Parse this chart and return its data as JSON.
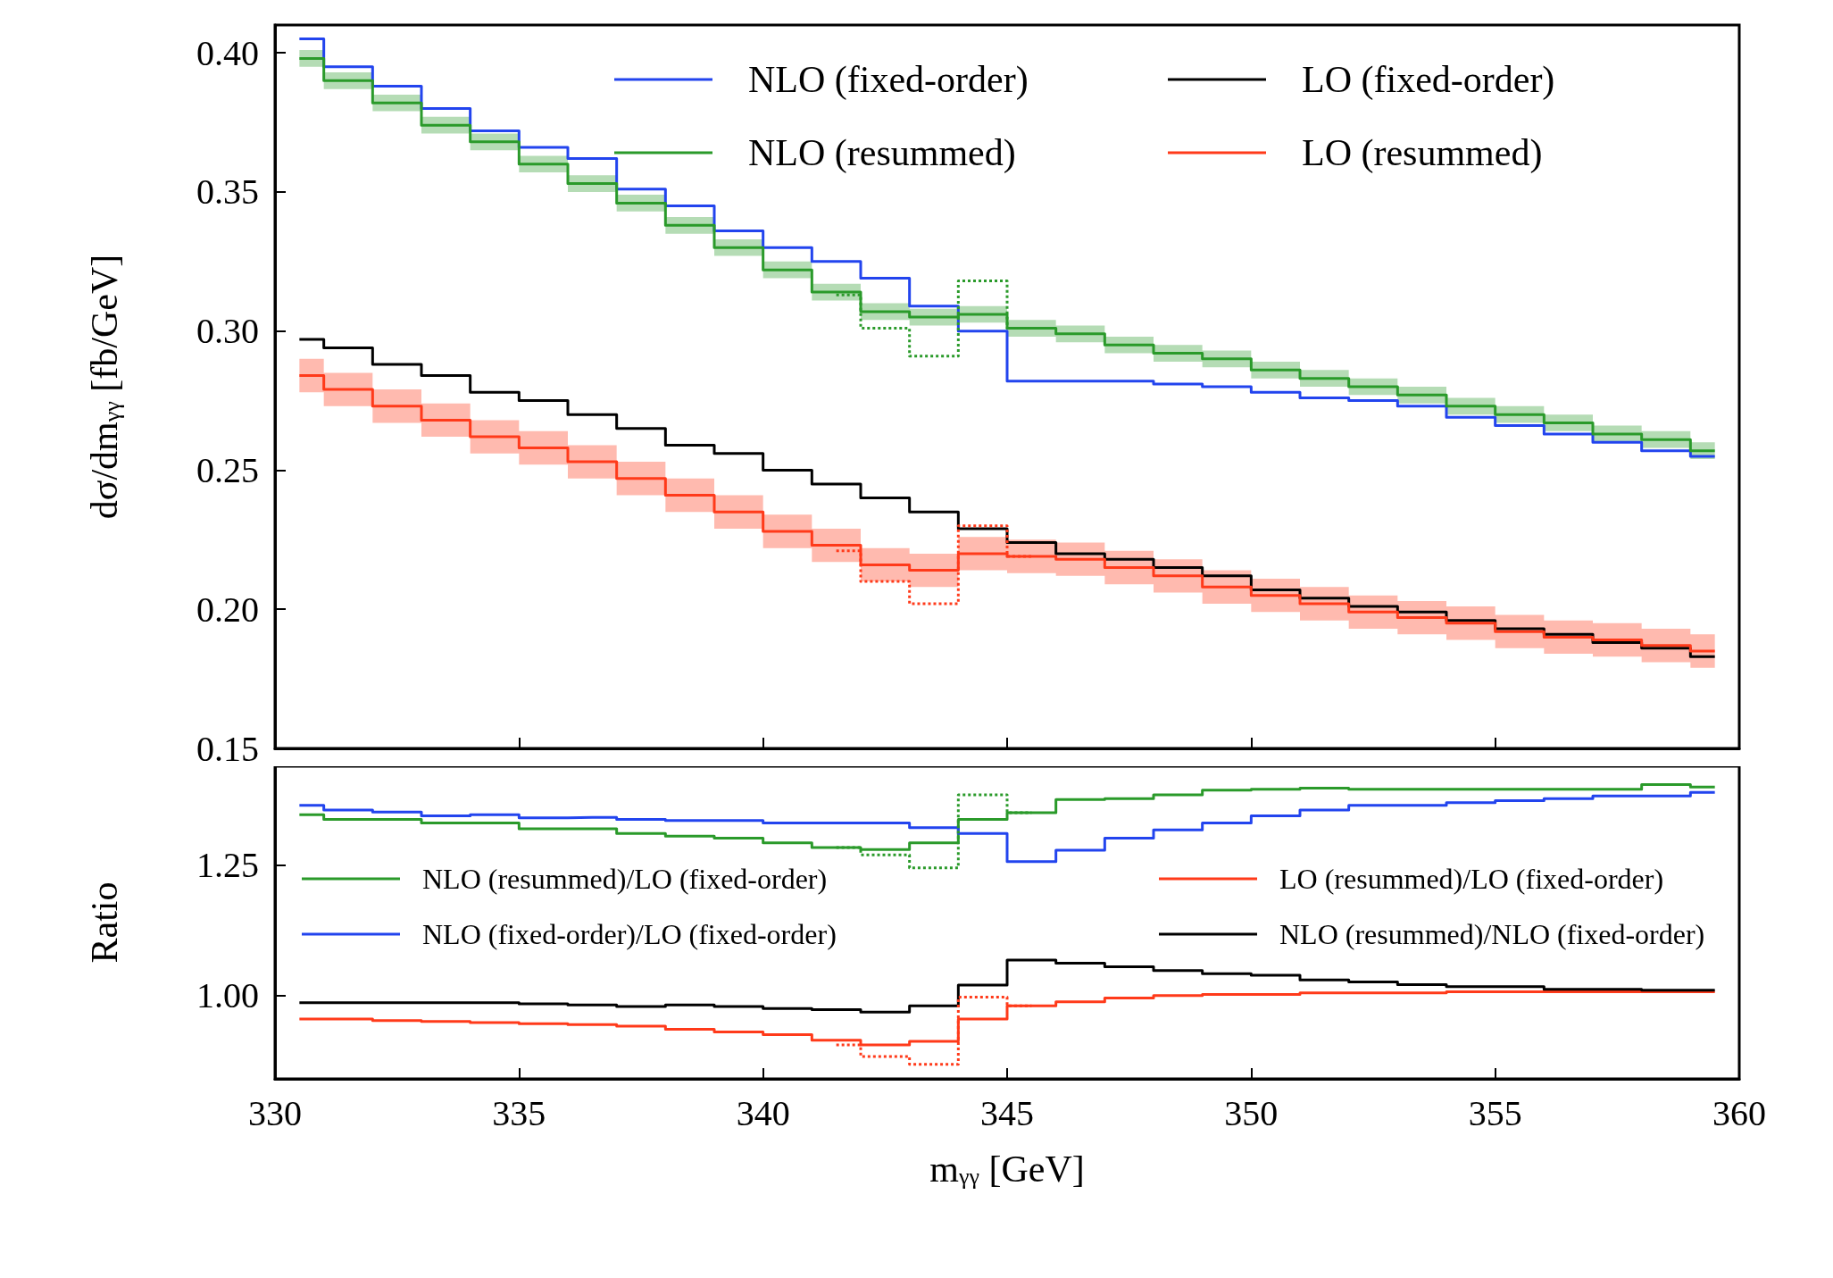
{
  "chart_data": [
    {
      "type": "step",
      "ylabel": "dσ/dm$_{γγ}$ [fb/GeV]",
      "x": [
        330.5,
        331.5,
        332.5,
        333.5,
        334.5,
        335.5,
        336.5,
        337.5,
        338.5,
        339.5,
        340.5,
        341.5,
        342.5,
        343.5,
        344.5,
        345.5,
        346.5,
        347.5,
        348.5,
        349.5,
        350.5,
        351.5,
        352.5,
        353.5,
        354.5,
        355.5,
        356.5,
        357.5,
        358.5,
        359.5
      ],
      "xlim": [
        330,
        360
      ],
      "xticks": [
        330,
        335,
        340,
        345,
        350,
        355,
        360
      ],
      "ylim": [
        0.15,
        0.41
      ],
      "yticks": [
        {
          "value": 0.15,
          "label": "0.15"
        },
        {
          "value": 0.2,
          "label": "0.20"
        },
        {
          "value": 0.25,
          "label": "0.25"
        },
        {
          "value": 0.3,
          "label": "0.30"
        },
        {
          "value": 0.35,
          "label": "0.35"
        },
        {
          "value": 0.4,
          "label": "0.40"
        }
      ],
      "tick_labels": "y",
      "grid": false,
      "legend": "top right",
      "series": [
        {
          "name": "NLO (fixed-order)",
          "color": "#2244ee",
          "values": [
            0.405,
            0.395,
            0.388,
            0.38,
            0.372,
            0.366,
            0.362,
            0.351,
            0.345,
            0.336,
            0.33,
            0.325,
            0.319,
            0.309,
            0.3,
            0.282,
            0.282,
            0.282,
            0.281,
            0.28,
            0.278,
            0.276,
            0.275,
            0.273,
            0.269,
            0.266,
            0.263,
            0.26,
            0.257,
            0.255
          ]
        },
        {
          "name": "NLO (resummed)",
          "color": "#2a9a2a",
          "values": [
            0.398,
            0.39,
            0.382,
            0.374,
            0.368,
            0.36,
            0.353,
            0.346,
            0.338,
            0.33,
            0.322,
            0.314,
            0.307,
            0.305,
            0.306,
            0.301,
            0.299,
            0.295,
            0.292,
            0.29,
            0.286,
            0.283,
            0.28,
            0.277,
            0.273,
            0.27,
            0.267,
            0.263,
            0.261,
            0.257
          ],
          "lower": [
            0.395,
            0.387,
            0.379,
            0.371,
            0.365,
            0.357,
            0.35,
            0.343,
            0.335,
            0.327,
            0.319,
            0.311,
            0.304,
            0.302,
            0.303,
            0.298,
            0.296,
            0.292,
            0.289,
            0.287,
            0.283,
            0.28,
            0.277,
            0.274,
            0.27,
            0.267,
            0.264,
            0.26,
            0.258,
            0.254
          ],
          "upper": [
            0.401,
            0.393,
            0.385,
            0.377,
            0.371,
            0.363,
            0.356,
            0.349,
            0.341,
            0.333,
            0.325,
            0.317,
            0.31,
            0.308,
            0.309,
            0.304,
            0.302,
            0.298,
            0.295,
            0.293,
            0.289,
            0.286,
            0.283,
            0.28,
            0.276,
            0.273,
            0.27,
            0.266,
            0.264,
            0.26
          ]
        },
        {
          "name": "LO (fixed-order)",
          "color": "#000000",
          "values": [
            0.297,
            0.294,
            0.288,
            0.284,
            0.278,
            0.275,
            0.27,
            0.265,
            0.259,
            0.256,
            0.25,
            0.245,
            0.24,
            0.235,
            0.229,
            0.224,
            0.22,
            0.218,
            0.215,
            0.212,
            0.207,
            0.204,
            0.201,
            0.199,
            0.196,
            0.193,
            0.191,
            0.188,
            0.186,
            0.183
          ]
        },
        {
          "name": "LO (resummed)",
          "color": "#ff3a1a",
          "values": [
            0.284,
            0.279,
            0.273,
            0.268,
            0.262,
            0.258,
            0.253,
            0.247,
            0.241,
            0.235,
            0.228,
            0.223,
            0.216,
            0.214,
            0.22,
            0.219,
            0.218,
            0.215,
            0.212,
            0.208,
            0.205,
            0.202,
            0.199,
            0.197,
            0.195,
            0.192,
            0.19,
            0.189,
            0.187,
            0.185
          ],
          "lower": [
            0.278,
            0.273,
            0.267,
            0.262,
            0.256,
            0.252,
            0.247,
            0.241,
            0.235,
            0.229,
            0.222,
            0.217,
            0.21,
            0.208,
            0.214,
            0.213,
            0.212,
            0.209,
            0.206,
            0.202,
            0.199,
            0.196,
            0.193,
            0.191,
            0.189,
            0.186,
            0.184,
            0.183,
            0.181,
            0.179
          ],
          "upper": [
            0.29,
            0.285,
            0.279,
            0.274,
            0.268,
            0.264,
            0.259,
            0.253,
            0.247,
            0.241,
            0.234,
            0.229,
            0.222,
            0.22,
            0.226,
            0.225,
            0.224,
            0.221,
            0.218,
            0.214,
            0.211,
            0.208,
            0.205,
            0.203,
            0.201,
            0.198,
            0.196,
            0.195,
            0.193,
            0.191
          ]
        },
        {
          "color": "#2a9a2a",
          "line_style": "dotted",
          "x": [
            341.5,
            342.5,
            343.5,
            344.5,
            345.5
          ],
          "values": [
            0.313,
            0.301,
            0.291,
            0.318,
            0.301
          ]
        },
        {
          "color": "#ff3a1a",
          "line_style": "dotted",
          "x": [
            341.5,
            342.5,
            343.5,
            344.5,
            345.5
          ],
          "values": [
            0.221,
            0.21,
            0.202,
            0.23,
            0.219
          ]
        }
      ]
    },
    {
      "type": "step",
      "xlabel": "m$_{γγ}$ [GeV]",
      "ylabel": "Ratio",
      "x": [
        330.5,
        331.5,
        332.5,
        333.5,
        334.5,
        335.5,
        336.5,
        337.5,
        338.5,
        339.5,
        340.5,
        341.5,
        342.5,
        343.5,
        344.5,
        345.5,
        346.5,
        347.5,
        348.5,
        349.5,
        350.5,
        351.5,
        352.5,
        353.5,
        354.5,
        355.5,
        356.5,
        357.5,
        358.5,
        359.5
      ],
      "xlim": [
        330,
        360
      ],
      "xticks": [
        330,
        335,
        340,
        345,
        350,
        355,
        360
      ],
      "ylim": [
        0.84,
        1.44
      ],
      "yticks": [
        {
          "value": 1.0,
          "label": "1.00"
        },
        {
          "value": 1.25,
          "label": "1.25"
        }
      ],
      "grid": false,
      "legend": "top",
      "series": [
        {
          "name": "NLO (resummed)/LO (fixed-order)",
          "color": "#2a9a2a",
          "values": [
            1.347,
            1.338,
            1.338,
            1.331,
            1.331,
            1.32,
            1.32,
            1.311,
            1.306,
            1.302,
            1.293,
            1.284,
            1.28,
            1.293,
            1.338,
            1.351,
            1.376,
            1.378,
            1.385,
            1.394,
            1.396,
            1.398,
            1.396,
            1.396,
            1.396,
            1.396,
            1.396,
            1.396,
            1.405,
            1.4
          ]
        },
        {
          "name": "NLO (fixed-order)/LO (fixed-order)",
          "color": "#2244ee",
          "values": [
            1.365,
            1.356,
            1.352,
            1.345,
            1.347,
            1.341,
            1.342,
            1.338,
            1.336,
            1.336,
            1.331,
            1.331,
            1.331,
            1.322,
            1.311,
            1.257,
            1.279,
            1.302,
            1.318,
            1.331,
            1.345,
            1.356,
            1.365,
            1.365,
            1.37,
            1.374,
            1.378,
            1.383,
            1.383,
            1.39
          ]
        },
        {
          "name": "LO (resummed)/LO (fixed-order)",
          "color": "#ff3a1a",
          "values": [
            0.955,
            0.955,
            0.952,
            0.95,
            0.948,
            0.946,
            0.944,
            0.941,
            0.935,
            0.93,
            0.925,
            0.914,
            0.905,
            0.912,
            0.955,
            0.98,
            0.988,
            0.995,
            1.0,
            1.002,
            1.002,
            1.005,
            1.005,
            1.005,
            1.007,
            1.007,
            1.007,
            1.007,
            1.007,
            1.007
          ]
        },
        {
          "name": "NLO (resummed)/NLO (fixed-order)",
          "color": "#000000",
          "values": [
            0.986,
            0.986,
            0.986,
            0.986,
            0.986,
            0.984,
            0.982,
            0.979,
            0.982,
            0.979,
            0.975,
            0.973,
            0.968,
            0.98,
            1.02,
            1.068,
            1.062,
            1.055,
            1.048,
            1.042,
            1.039,
            1.03,
            1.026,
            1.021,
            1.017,
            1.017,
            1.012,
            1.012,
            1.01,
            1.01
          ]
        },
        {
          "color": "#2a9a2a",
          "line_style": "dotted",
          "x": [
            341.5,
            342.5,
            343.5,
            344.5,
            345.5
          ],
          "values": [
            1.284,
            1.27,
            1.245,
            1.385,
            1.351
          ]
        },
        {
          "color": "#ff3a1a",
          "line_style": "dotted",
          "x": [
            341.5,
            342.5,
            343.5,
            344.5,
            345.5
          ],
          "values": [
            0.905,
            0.883,
            0.868,
            0.997,
            0.98
          ]
        }
      ]
    }
  ]
}
